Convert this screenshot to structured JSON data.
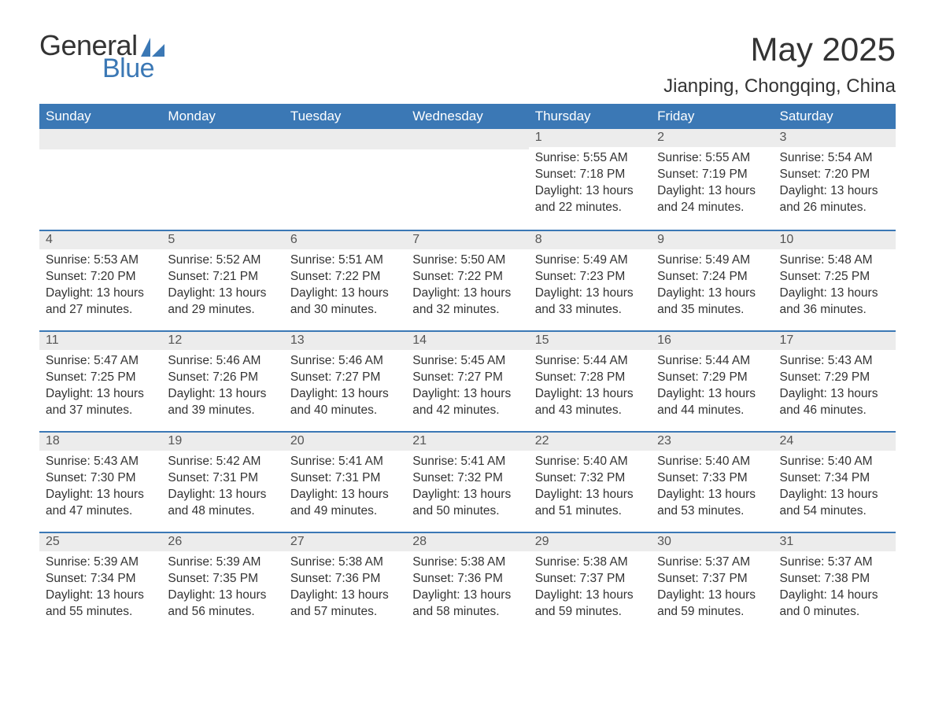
{
  "logo": {
    "text_general": "General",
    "text_blue": "Blue",
    "shape_color": "#3b78b5"
  },
  "title": {
    "month_year": "May 2025",
    "location": "Jianping, Chongqing, China"
  },
  "colors": {
    "header_bg": "#3b78b5",
    "header_text": "#ffffff",
    "daynum_bg": "#ececec",
    "row_divider": "#3b78b5",
    "body_text": "#333333",
    "page_bg": "#ffffff"
  },
  "weekdays": [
    "Sunday",
    "Monday",
    "Tuesday",
    "Wednesday",
    "Thursday",
    "Friday",
    "Saturday"
  ],
  "weeks": [
    [
      null,
      null,
      null,
      null,
      {
        "day": "1",
        "sunrise": "5:55 AM",
        "sunset": "7:18 PM",
        "daylight": "13 hours and 22 minutes."
      },
      {
        "day": "2",
        "sunrise": "5:55 AM",
        "sunset": "7:19 PM",
        "daylight": "13 hours and 24 minutes."
      },
      {
        "day": "3",
        "sunrise": "5:54 AM",
        "sunset": "7:20 PM",
        "daylight": "13 hours and 26 minutes."
      }
    ],
    [
      {
        "day": "4",
        "sunrise": "5:53 AM",
        "sunset": "7:20 PM",
        "daylight": "13 hours and 27 minutes."
      },
      {
        "day": "5",
        "sunrise": "5:52 AM",
        "sunset": "7:21 PM",
        "daylight": "13 hours and 29 minutes."
      },
      {
        "day": "6",
        "sunrise": "5:51 AM",
        "sunset": "7:22 PM",
        "daylight": "13 hours and 30 minutes."
      },
      {
        "day": "7",
        "sunrise": "5:50 AM",
        "sunset": "7:22 PM",
        "daylight": "13 hours and 32 minutes."
      },
      {
        "day": "8",
        "sunrise": "5:49 AM",
        "sunset": "7:23 PM",
        "daylight": "13 hours and 33 minutes."
      },
      {
        "day": "9",
        "sunrise": "5:49 AM",
        "sunset": "7:24 PM",
        "daylight": "13 hours and 35 minutes."
      },
      {
        "day": "10",
        "sunrise": "5:48 AM",
        "sunset": "7:25 PM",
        "daylight": "13 hours and 36 minutes."
      }
    ],
    [
      {
        "day": "11",
        "sunrise": "5:47 AM",
        "sunset": "7:25 PM",
        "daylight": "13 hours and 37 minutes."
      },
      {
        "day": "12",
        "sunrise": "5:46 AM",
        "sunset": "7:26 PM",
        "daylight": "13 hours and 39 minutes."
      },
      {
        "day": "13",
        "sunrise": "5:46 AM",
        "sunset": "7:27 PM",
        "daylight": "13 hours and 40 minutes."
      },
      {
        "day": "14",
        "sunrise": "5:45 AM",
        "sunset": "7:27 PM",
        "daylight": "13 hours and 42 minutes."
      },
      {
        "day": "15",
        "sunrise": "5:44 AM",
        "sunset": "7:28 PM",
        "daylight": "13 hours and 43 minutes."
      },
      {
        "day": "16",
        "sunrise": "5:44 AM",
        "sunset": "7:29 PM",
        "daylight": "13 hours and 44 minutes."
      },
      {
        "day": "17",
        "sunrise": "5:43 AM",
        "sunset": "7:29 PM",
        "daylight": "13 hours and 46 minutes."
      }
    ],
    [
      {
        "day": "18",
        "sunrise": "5:43 AM",
        "sunset": "7:30 PM",
        "daylight": "13 hours and 47 minutes."
      },
      {
        "day": "19",
        "sunrise": "5:42 AM",
        "sunset": "7:31 PM",
        "daylight": "13 hours and 48 minutes."
      },
      {
        "day": "20",
        "sunrise": "5:41 AM",
        "sunset": "7:31 PM",
        "daylight": "13 hours and 49 minutes."
      },
      {
        "day": "21",
        "sunrise": "5:41 AM",
        "sunset": "7:32 PM",
        "daylight": "13 hours and 50 minutes."
      },
      {
        "day": "22",
        "sunrise": "5:40 AM",
        "sunset": "7:32 PM",
        "daylight": "13 hours and 51 minutes."
      },
      {
        "day": "23",
        "sunrise": "5:40 AM",
        "sunset": "7:33 PM",
        "daylight": "13 hours and 53 minutes."
      },
      {
        "day": "24",
        "sunrise": "5:40 AM",
        "sunset": "7:34 PM",
        "daylight": "13 hours and 54 minutes."
      }
    ],
    [
      {
        "day": "25",
        "sunrise": "5:39 AM",
        "sunset": "7:34 PM",
        "daylight": "13 hours and 55 minutes."
      },
      {
        "day": "26",
        "sunrise": "5:39 AM",
        "sunset": "7:35 PM",
        "daylight": "13 hours and 56 minutes."
      },
      {
        "day": "27",
        "sunrise": "5:38 AM",
        "sunset": "7:36 PM",
        "daylight": "13 hours and 57 minutes."
      },
      {
        "day": "28",
        "sunrise": "5:38 AM",
        "sunset": "7:36 PM",
        "daylight": "13 hours and 58 minutes."
      },
      {
        "day": "29",
        "sunrise": "5:38 AM",
        "sunset": "7:37 PM",
        "daylight": "13 hours and 59 minutes."
      },
      {
        "day": "30",
        "sunrise": "5:37 AM",
        "sunset": "7:37 PM",
        "daylight": "13 hours and 59 minutes."
      },
      {
        "day": "31",
        "sunrise": "5:37 AM",
        "sunset": "7:38 PM",
        "daylight": "14 hours and 0 minutes."
      }
    ]
  ],
  "labels": {
    "sunrise": "Sunrise: ",
    "sunset": "Sunset: ",
    "daylight": "Daylight: "
  }
}
